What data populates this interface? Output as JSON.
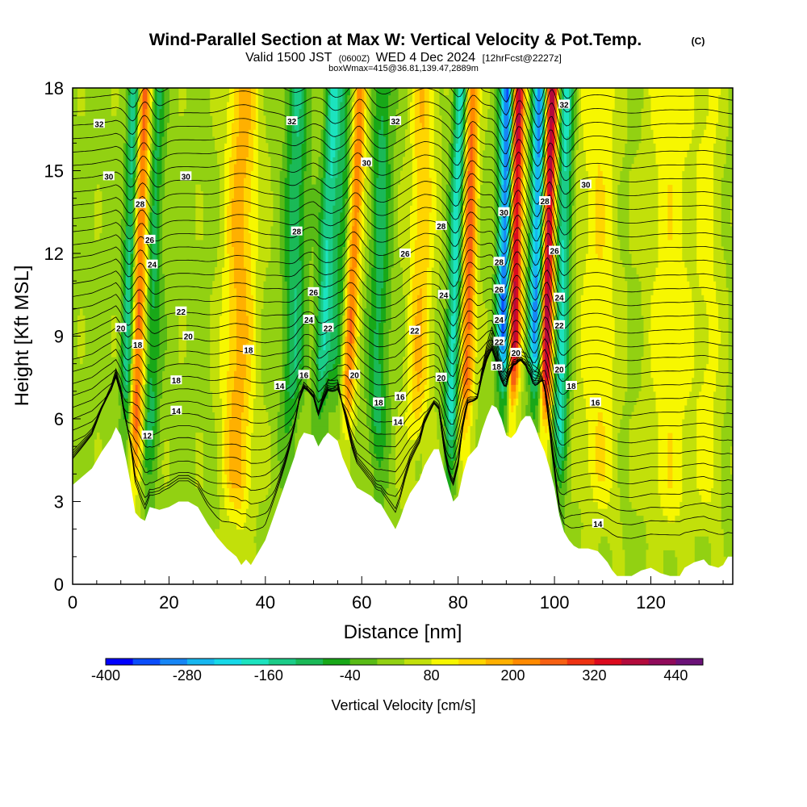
{
  "title": {
    "main": "Wind-Parallel Section at Max W: Vertical Velocity & Pot.Temp.",
    "copyright": "(C)",
    "valid_prefix": "Valid 1500 JST",
    "valid_utc": "(0600Z)",
    "valid_date": "WED 4 Dec 2024",
    "forecast": "[12hrFcst@2227z]",
    "boxwmax": "boxWmax=415@36.81,139.47,2889m"
  },
  "chart_data": {
    "type": "heatmap",
    "xlabel": "Distance [nm]",
    "ylabel": "Height [Kft MSL]",
    "xlim": [
      0,
      137
    ],
    "ylim": [
      0,
      18
    ],
    "xticks": [
      0,
      20,
      40,
      60,
      80,
      100,
      120
    ],
    "yticks": [
      0,
      3,
      6,
      9,
      12,
      15,
      18
    ],
    "terrain_height_kft": [
      [
        0,
        3.6
      ],
      [
        2,
        3.9
      ],
      [
        4,
        4.2
      ],
      [
        6,
        4.8
      ],
      [
        8,
        5.3
      ],
      [
        9,
        5.7
      ],
      [
        10,
        5.4
      ],
      [
        11,
        4.6
      ],
      [
        12,
        3.7
      ],
      [
        13,
        2.6
      ],
      [
        14,
        2.4
      ],
      [
        15,
        2.3
      ],
      [
        16,
        2.8
      ],
      [
        18,
        2.7
      ],
      [
        20,
        2.8
      ],
      [
        22,
        3.0
      ],
      [
        24,
        3.0
      ],
      [
        26,
        2.8
      ],
      [
        28,
        2.2
      ],
      [
        30,
        1.7
      ],
      [
        32,
        1.3
      ],
      [
        34,
        1.0
      ],
      [
        35,
        0.7
      ],
      [
        36,
        0.9
      ],
      [
        37,
        0.7
      ],
      [
        38,
        1.0
      ],
      [
        40,
        1.6
      ],
      [
        42,
        2.6
      ],
      [
        44,
        3.6
      ],
      [
        46,
        4.6
      ],
      [
        47,
        5.2
      ],
      [
        48,
        5.5
      ],
      [
        50,
        5.4
      ],
      [
        51,
        5.0
      ],
      [
        52,
        5.3
      ],
      [
        53,
        5.5
      ],
      [
        55,
        5.2
      ],
      [
        56,
        4.6
      ],
      [
        57,
        4.2
      ],
      [
        58,
        3.8
      ],
      [
        59,
        3.5
      ],
      [
        60,
        3.4
      ],
      [
        62,
        3.2
      ],
      [
        63,
        3.0
      ],
      [
        64,
        2.9
      ],
      [
        65,
        2.6
      ],
      [
        66,
        2.3
      ],
      [
        67,
        2.0
      ],
      [
        68,
        2.4
      ],
      [
        69,
        2.9
      ],
      [
        70,
        3.3
      ],
      [
        72,
        3.8
      ],
      [
        73,
        4.3
      ],
      [
        74,
        4.6
      ],
      [
        75,
        4.9
      ],
      [
        76,
        4.9
      ],
      [
        77,
        4.2
      ],
      [
        78,
        3.6
      ],
      [
        79,
        3.0
      ],
      [
        80,
        3.2
      ],
      [
        81,
        4.0
      ],
      [
        82,
        4.6
      ],
      [
        84,
        5.0
      ],
      [
        85,
        5.6
      ],
      [
        86,
        6.1
      ],
      [
        87,
        6.5
      ],
      [
        88,
        6.4
      ],
      [
        89,
        6.0
      ],
      [
        90,
        5.4
      ],
      [
        91,
        5.3
      ],
      [
        92,
        5.5
      ],
      [
        93,
        5.9
      ],
      [
        94,
        6.1
      ],
      [
        95,
        6.1
      ],
      [
        96,
        5.7
      ],
      [
        97,
        5.2
      ],
      [
        98,
        4.8
      ],
      [
        99,
        4.2
      ],
      [
        100,
        3.5
      ],
      [
        101,
        2.5
      ],
      [
        102,
        1.9
      ],
      [
        103,
        1.6
      ],
      [
        104,
        1.4
      ],
      [
        105,
        1.3
      ],
      [
        107,
        1.3
      ],
      [
        109,
        1.2
      ],
      [
        110,
        1.0
      ],
      [
        111,
        0.8
      ],
      [
        112,
        0.5
      ],
      [
        113,
        0.3
      ],
      [
        116,
        0.3
      ],
      [
        118,
        0.5
      ],
      [
        120,
        0.6
      ],
      [
        122,
        0.4
      ],
      [
        124,
        0.3
      ],
      [
        126,
        0.3
      ],
      [
        127,
        0.6
      ],
      [
        129,
        0.8
      ],
      [
        131,
        0.9
      ],
      [
        132,
        0.7
      ],
      [
        134,
        0.6
      ],
      [
        135,
        0.7
      ],
      [
        136,
        1.0
      ],
      [
        137,
        1.0
      ]
    ],
    "vertical_velocity_features_cm_s": [
      {
        "x": 13.5,
        "w": 240,
        "width_nm": 1.6,
        "tilt": 0.16
      },
      {
        "x": 11.5,
        "w": -200,
        "width_nm": 1.3,
        "tilt": 0.16
      },
      {
        "x": 16.5,
        "w": -120,
        "width_nm": 1.6,
        "tilt": 0.12
      },
      {
        "x": 34.5,
        "w": 150,
        "width_nm": 3.5,
        "tilt": 0.1
      },
      {
        "x": 46,
        "w": -140,
        "width_nm": 2.2,
        "tilt": 0.07
      },
      {
        "x": 52,
        "w": -180,
        "width_nm": 1.6,
        "tilt": 0.25
      },
      {
        "x": 57.5,
        "w": 220,
        "width_nm": 1.5,
        "tilt": 0.25
      },
      {
        "x": 55,
        "w": -100,
        "width_nm": 2.0,
        "tilt": 0.2
      },
      {
        "x": 63.5,
        "w": -120,
        "width_nm": 2.0,
        "tilt": 0.1
      },
      {
        "x": 72,
        "w": 130,
        "width_nm": 2.6,
        "tilt": 0.1
      },
      {
        "x": 79,
        "w": -220,
        "width_nm": 1.4,
        "tilt": 0.18
      },
      {
        "x": 82,
        "w": 240,
        "width_nm": 1.5,
        "tilt": 0.1
      },
      {
        "x": 89.5,
        "w": -380,
        "width_nm": 1.5,
        "tilt": 0.1
      },
      {
        "x": 91.5,
        "w": 390,
        "width_nm": 1.4,
        "tilt": 0.1
      },
      {
        "x": 96,
        "w": -320,
        "width_nm": 1.4,
        "tilt": 0.11
      },
      {
        "x": 98.3,
        "w": 380,
        "width_nm": 1.3,
        "tilt": 0.13
      },
      {
        "x": 101.5,
        "w": -200,
        "width_nm": 1.5,
        "tilt": 0.12
      },
      {
        "x": 109,
        "w": 90,
        "width_nm": 4.0,
        "tilt": 0.0
      },
      {
        "x": 124,
        "w": 80,
        "width_nm": 5.0,
        "tilt": 0.0
      },
      {
        "x": 132,
        "w": 60,
        "width_nm": 3.0,
        "tilt": 0.0
      }
    ],
    "theta_contour_labels": [
      {
        "x": 5.5,
        "y": 16.7,
        "text": "32"
      },
      {
        "x": 45.5,
        "y": 16.8,
        "text": "32"
      },
      {
        "x": 67,
        "y": 16.8,
        "text": "32"
      },
      {
        "x": 102,
        "y": 17.4,
        "text": "32"
      },
      {
        "x": 7.5,
        "y": 14.8,
        "text": "30"
      },
      {
        "x": 23.5,
        "y": 14.8,
        "text": "30"
      },
      {
        "x": 61,
        "y": 15.3,
        "text": "30"
      },
      {
        "x": 89.5,
        "y": 13.5,
        "text": "30"
      },
      {
        "x": 106.5,
        "y": 14.5,
        "text": "30"
      },
      {
        "x": 14,
        "y": 13.8,
        "text": "28"
      },
      {
        "x": 46.5,
        "y": 12.8,
        "text": "28"
      },
      {
        "x": 76.5,
        "y": 13.0,
        "text": "28"
      },
      {
        "x": 98,
        "y": 13.9,
        "text": "28"
      },
      {
        "x": 16,
        "y": 12.5,
        "text": "26"
      },
      {
        "x": 69,
        "y": 12.0,
        "text": "26"
      },
      {
        "x": 88.5,
        "y": 11.7,
        "text": "28"
      },
      {
        "x": 100,
        "y": 12.1,
        "text": "26"
      },
      {
        "x": 16.5,
        "y": 11.6,
        "text": "24"
      },
      {
        "x": 50,
        "y": 10.6,
        "text": "26"
      },
      {
        "x": 77,
        "y": 10.5,
        "text": "24"
      },
      {
        "x": 88.5,
        "y": 10.7,
        "text": "26"
      },
      {
        "x": 101,
        "y": 10.4,
        "text": "24"
      },
      {
        "x": 22.5,
        "y": 9.9,
        "text": "22"
      },
      {
        "x": 49,
        "y": 9.6,
        "text": "24"
      },
      {
        "x": 88.5,
        "y": 9.6,
        "text": "24"
      },
      {
        "x": 10,
        "y": 9.3,
        "text": "20"
      },
      {
        "x": 24,
        "y": 9.0,
        "text": "20"
      },
      {
        "x": 53,
        "y": 9.3,
        "text": "22"
      },
      {
        "x": 71,
        "y": 9.2,
        "text": "22"
      },
      {
        "x": 101,
        "y": 9.4,
        "text": "22"
      },
      {
        "x": 13.5,
        "y": 8.7,
        "text": "18"
      },
      {
        "x": 36.5,
        "y": 8.5,
        "text": "18"
      },
      {
        "x": 88.5,
        "y": 8.8,
        "text": "22"
      },
      {
        "x": 92,
        "y": 8.4,
        "text": "20"
      },
      {
        "x": 48,
        "y": 7.6,
        "text": "16"
      },
      {
        "x": 58.5,
        "y": 7.6,
        "text": "20"
      },
      {
        "x": 88,
        "y": 7.9,
        "text": "18"
      },
      {
        "x": 101,
        "y": 7.8,
        "text": "20"
      },
      {
        "x": 21.5,
        "y": 7.4,
        "text": "18"
      },
      {
        "x": 43,
        "y": 7.2,
        "text": "14"
      },
      {
        "x": 76.5,
        "y": 7.5,
        "text": "20"
      },
      {
        "x": 103.5,
        "y": 7.2,
        "text": "18"
      },
      {
        "x": 63.5,
        "y": 6.6,
        "text": "18"
      },
      {
        "x": 68,
        "y": 6.8,
        "text": "16"
      },
      {
        "x": 108.5,
        "y": 6.6,
        "text": "16"
      },
      {
        "x": 21.5,
        "y": 6.3,
        "text": "14"
      },
      {
        "x": 67.5,
        "y": 5.9,
        "text": "14"
      },
      {
        "x": 15.5,
        "y": 5.4,
        "text": "12"
      },
      {
        "x": 109,
        "y": 2.2,
        "text": "14"
      }
    ]
  },
  "colorbar": {
    "label": "Vertical Velocity [cm/s]",
    "min": -400,
    "max": 480,
    "step": 40,
    "tick_values": [
      -400,
      -280,
      -160,
      -40,
      80,
      200,
      320,
      440
    ],
    "tick_labels": [
      "-400",
      "-280",
      "-160",
      "-40",
      "80",
      "200",
      "320",
      "440"
    ],
    "colors": [
      "#0000ff",
      "#0b4dfb",
      "#1786f6",
      "#17b7f0",
      "#17d9e8",
      "#1ce3bf",
      "#1bcc88",
      "#1ab957",
      "#18a818",
      "#59bb16",
      "#92d112",
      "#c2e00a",
      "#f7f700",
      "#ffd500",
      "#ffb000",
      "#ff8a00",
      "#f76012",
      "#ee3212",
      "#dc0a1e",
      "#b30a3c",
      "#900a5a",
      "#6b1278"
    ]
  }
}
